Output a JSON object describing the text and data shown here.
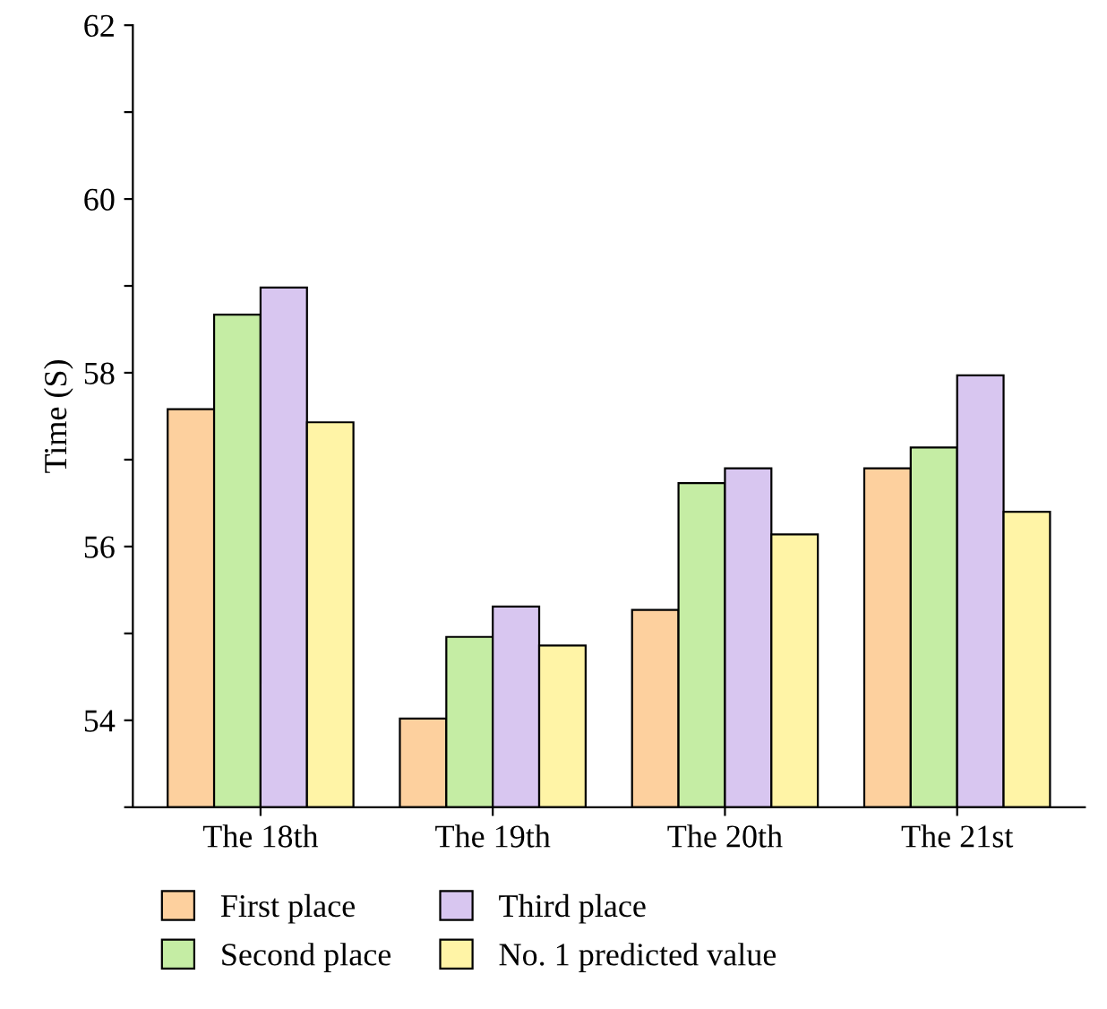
{
  "chart_data": {
    "type": "bar",
    "ylabel": "Time (S)",
    "categories": [
      "The 18th",
      "The 19th",
      "The 20th",
      "The 21st"
    ],
    "series": [
      {
        "name": "First place",
        "color": "#fdd09e",
        "values": [
          57.58,
          54.02,
          55.27,
          56.9
        ]
      },
      {
        "name": "Second place",
        "color": "#c5eda4",
        "values": [
          58.67,
          54.96,
          56.73,
          57.14
        ]
      },
      {
        "name": "Third place",
        "color": "#d8c6f0",
        "values": [
          58.98,
          55.31,
          56.9,
          57.97
        ]
      },
      {
        "name": "No. 1 predicted value",
        "color": "#fff4a6",
        "values": [
          57.43,
          54.86,
          56.14,
          56.4
        ]
      }
    ],
    "ylim": [
      53,
      62
    ],
    "yticks": [
      {
        "value": 53,
        "label": null
      },
      54,
      {
        "value": 55,
        "label": null
      },
      56,
      {
        "value": 57,
        "label": null
      },
      58,
      {
        "value": 59,
        "label": null
      },
      60,
      {
        "value": 61,
        "label": null
      },
      62
    ],
    "grid": false,
    "legend": "bottom"
  }
}
